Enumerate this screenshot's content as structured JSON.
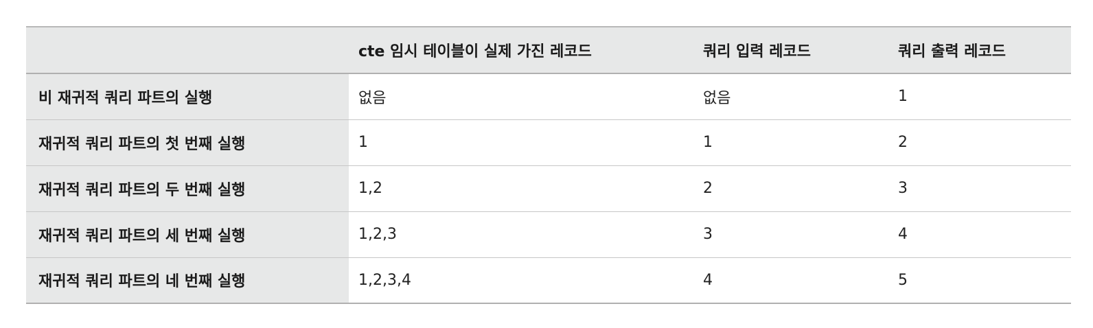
{
  "table": {
    "headers": [
      "",
      "cte 임시 테이블이 실제 가진 레코드",
      "쿼리 입력 레코드",
      "쿼리 출력 레코드"
    ],
    "rows": [
      {
        "label": "비 재귀적 쿼리 파트의 실행",
        "cells": [
          "없음",
          "없음",
          "1"
        ]
      },
      {
        "label": "재귀적 쿼리 파트의 첫 번째 실행",
        "cells": [
          "1",
          "1",
          "2"
        ]
      },
      {
        "label": "재귀적 쿼리 파트의 두 번째 실행",
        "cells": [
          "1,2",
          "2",
          "3"
        ]
      },
      {
        "label": "재귀적 쿼리 파트의 세 번째 실행",
        "cells": [
          "1,2,3",
          "3",
          "4"
        ]
      },
      {
        "label": "재귀적 쿼리 파트의 네 번째 실행",
        "cells": [
          "1,2,3,4",
          "4",
          "5"
        ]
      }
    ]
  }
}
